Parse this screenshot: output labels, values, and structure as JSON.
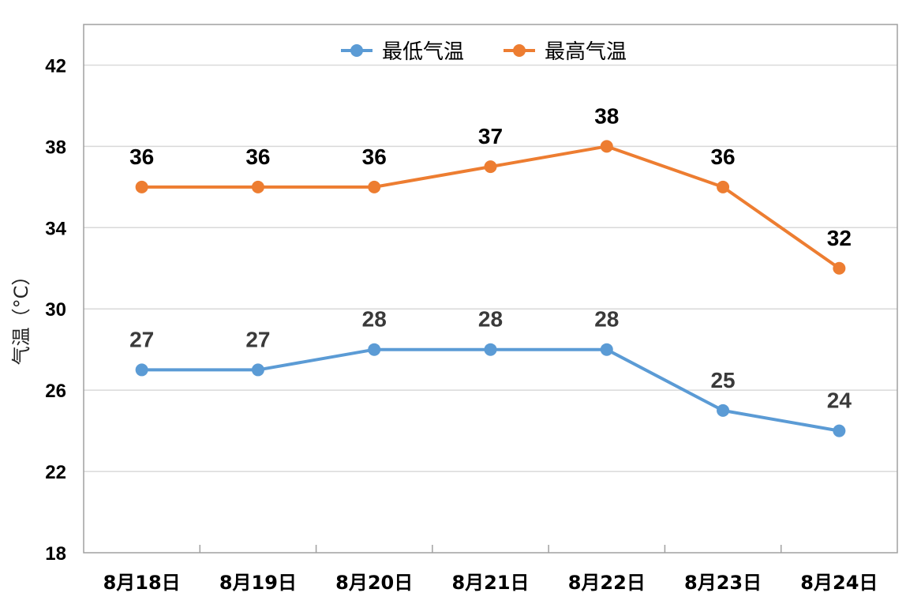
{
  "chart_data": {
    "type": "line",
    "categories": [
      "8月18日",
      "8月19日",
      "8月20日",
      "8月21日",
      "8月22日",
      "8月23日",
      "8月24日"
    ],
    "series": [
      {
        "name": "最低气温",
        "color": "#5B9BD5",
        "values": [
          27,
          27,
          28,
          28,
          28,
          25,
          24
        ]
      },
      {
        "name": "最高气温",
        "color": "#ED7D31",
        "values": [
          36,
          36,
          36,
          37,
          38,
          36,
          32
        ]
      }
    ],
    "ylabel": "气温（°C）",
    "ylim": [
      18,
      44
    ],
    "yticks": [
      18,
      22,
      26,
      30,
      34,
      38,
      42
    ],
    "grid": true,
    "legend_position": "top-center",
    "data_labels": true
  }
}
